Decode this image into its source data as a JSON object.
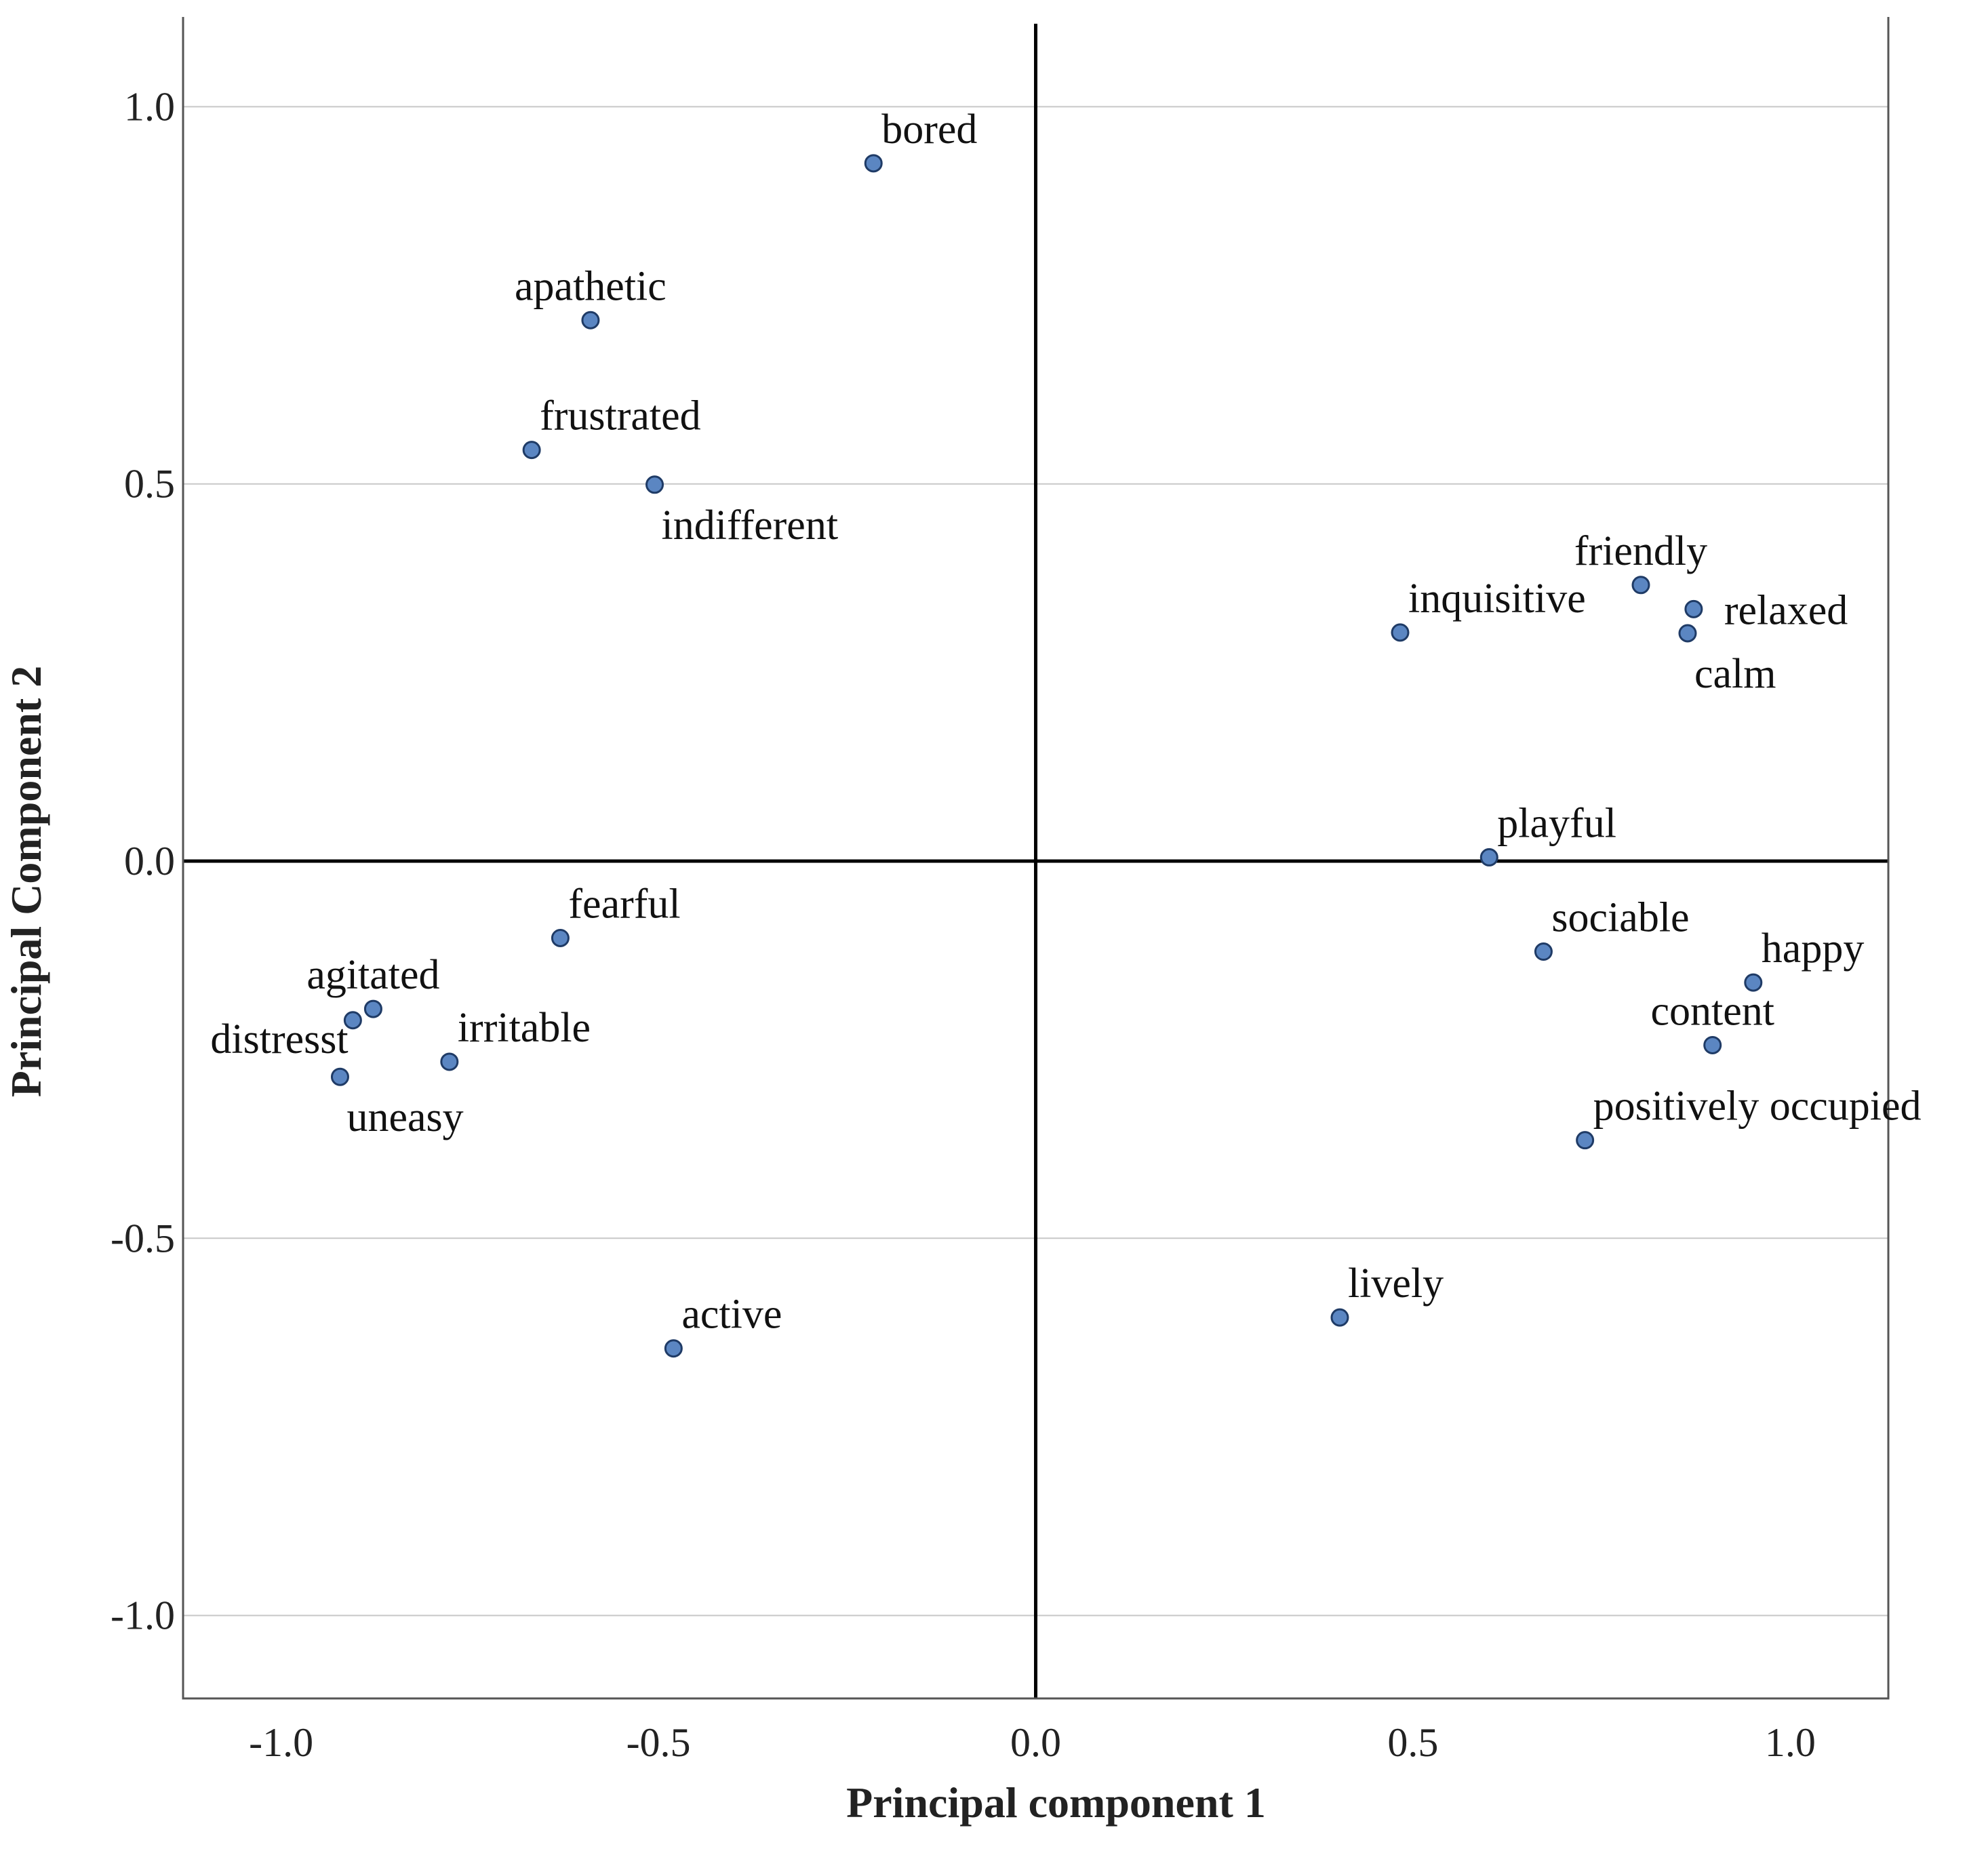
{
  "chart_data": {
    "type": "scatter",
    "title": "",
    "xlabel": "Principal component 1",
    "ylabel": "Principal Component 2",
    "xlim": [
      -1.13,
      1.13
    ],
    "ylim": [
      -1.11,
      1.11
    ],
    "xticks": [
      {
        "v": -1.0,
        "label": "-1.0"
      },
      {
        "v": -0.5,
        "label": "-0.5"
      },
      {
        "v": 0.0,
        "label": "0.0"
      },
      {
        "v": 0.5,
        "label": "0.5"
      },
      {
        "v": 1.0,
        "label": "1.0"
      }
    ],
    "yticks": [
      {
        "v": 1.0,
        "label": "1.0"
      },
      {
        "v": 0.5,
        "label": "0.5"
      },
      {
        "v": 0.0,
        "label": "0.0"
      },
      {
        "v": -0.5,
        "label": "-0.5"
      },
      {
        "v": -1.0,
        "label": "-1.0"
      }
    ],
    "grid": "horizontal",
    "points": [
      {
        "label": "bored",
        "x": -0.215,
        "y": 0.925,
        "pos": "above-right"
      },
      {
        "label": "apathetic",
        "x": -0.59,
        "y": 0.717,
        "pos": "above"
      },
      {
        "label": "frustrated",
        "x": -0.668,
        "y": 0.545,
        "pos": "above-right"
      },
      {
        "label": "indifferent",
        "x": -0.505,
        "y": 0.499,
        "pos": "below-right"
      },
      {
        "label": "friendly",
        "x": 0.802,
        "y": 0.366,
        "pos": "above"
      },
      {
        "label": "relaxed",
        "x": 0.872,
        "y": 0.334,
        "pos": "right"
      },
      {
        "label": "calm",
        "x": 0.864,
        "y": 0.302,
        "pos": "below-right"
      },
      {
        "label": "inquisitive",
        "x": 0.483,
        "y": 0.303,
        "pos": "above-right"
      },
      {
        "label": "playful",
        "x": 0.601,
        "y": 0.005,
        "pos": "above-right"
      },
      {
        "label": "sociable",
        "x": 0.673,
        "y": -0.12,
        "pos": "above-right"
      },
      {
        "label": "happy",
        "x": 0.951,
        "y": -0.161,
        "pos": "above-right"
      },
      {
        "label": "content",
        "x": 0.897,
        "y": -0.244,
        "pos": "above"
      },
      {
        "label": "positively occupied",
        "x": 0.728,
        "y": -0.37,
        "pos": "above-right"
      },
      {
        "label": "lively",
        "x": 0.403,
        "y": -0.605,
        "pos": "above-right"
      },
      {
        "label": "active",
        "x": -0.48,
        "y": -0.646,
        "pos": "above-right"
      },
      {
        "label": "fearful",
        "x": -0.63,
        "y": -0.102,
        "pos": "above-right"
      },
      {
        "label": "agitated",
        "x": -0.878,
        "y": -0.196,
        "pos": "above"
      },
      {
        "label": "distresst",
        "x": -0.905,
        "y": -0.211,
        "pos": "below-left"
      },
      {
        "label": "irritable",
        "x": -0.777,
        "y": -0.266,
        "pos": "above-right"
      },
      {
        "label": "uneasy",
        "x": -0.922,
        "y": -0.286,
        "pos": "below-right"
      }
    ]
  }
}
